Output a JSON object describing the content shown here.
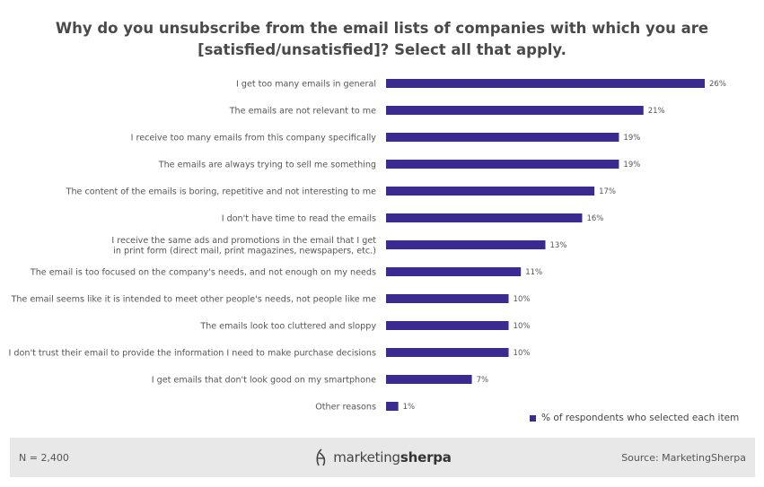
{
  "colors": {
    "bar": "#3b2a8f",
    "footer_bg": "#e8e8e8"
  },
  "chart_data": {
    "type": "bar",
    "orientation": "horizontal",
    "title_line1": "Why do you unsubscribe from the email lists of companies with which you are",
    "title_line2": "[satisfied/unsatisfied]? Select all that apply.",
    "categories": [
      "I get too many emails in general",
      "The emails are not relevant to me",
      "I receive too many emails from this company specifically",
      "The emails are always trying to sell me something",
      "The content of the emails is boring, repetitive and not interesting to me",
      "I don't have time to read the emails",
      "I receive the same ads and promotions in the email that I get in print form (direct mail, print magazines, newspapers, etc.)",
      "The email is too focused on the company's needs, and not enough on my needs",
      "The email seems like it is intended to meet other people's needs, not people like me",
      "The emails look too cluttered and sloppy",
      "I don't trust their email to provide the information I need to make purchase decisions",
      "I get emails that don't look good on my smartphone",
      "Other reasons"
    ],
    "label_lines": [
      [
        "I get too many emails in general"
      ],
      [
        "The emails are not relevant to me"
      ],
      [
        "I receive too many emails from this company specifically"
      ],
      [
        "The emails are always trying to sell me something"
      ],
      [
        "The content of the emails is boring, repetitive and not interesting to me"
      ],
      [
        "I don't have time to read the emails"
      ],
      [
        "I receive the same ads and promotions in the email that I get",
        "in print form (direct mail, print magazines, newspapers, etc.)"
      ],
      [
        "The email is too focused on the company's needs, and not enough on my needs"
      ],
      [
        "The email seems like it is intended to meet other people's needs, not people like me"
      ],
      [
        "The emails look too cluttered and sloppy"
      ],
      [
        "I don't trust their email to provide the information I need to make purchase decisions"
      ],
      [
        "I get emails that don't look good on my smartphone"
      ],
      [
        "Other reasons"
      ]
    ],
    "values": [
      26,
      21,
      19,
      19,
      17,
      16,
      13,
      11,
      10,
      10,
      10,
      7,
      1
    ],
    "value_labels": [
      "26%",
      "21%",
      "19%",
      "19%",
      "17%",
      "16%",
      "13%",
      "11%",
      "10%",
      "10%",
      "10%",
      "7%",
      "1%"
    ],
    "series_name": "% of respondents who selected each item",
    "xlim": [
      0,
      26
    ],
    "grid": false,
    "legend_position": "bottom-right"
  },
  "footer": {
    "n_label": "N = 2,400",
    "logo_text_light": "marketing",
    "logo_text_bold": "sherpa",
    "source": "Source: MarketingSherpa"
  }
}
